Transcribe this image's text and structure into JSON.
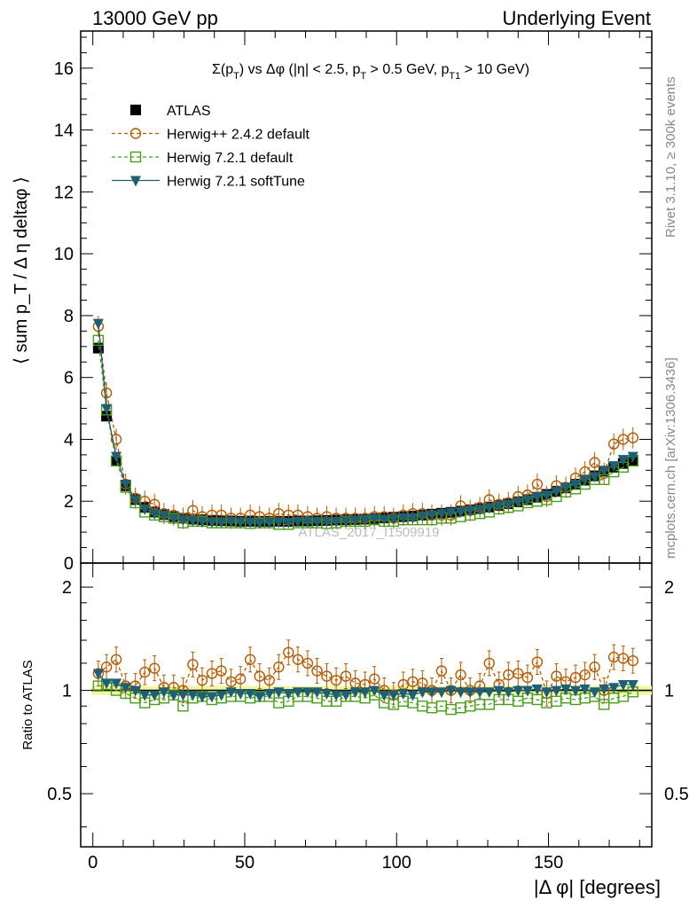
{
  "header": {
    "left": "13000 GeV pp",
    "right": "Underlying Event"
  },
  "side_labels": {
    "rivet": "Rivet 3.1.10, ≥ 300k events",
    "mcplots": "mcplots.cern.ch [arXiv:1306.3436]"
  },
  "watermark": "ATLAS_2017_I1509919",
  "colors": {
    "atlas": "#000000",
    "herwigpp": "#b35a00",
    "herwig721": "#4a9e1a",
    "softtune": "#1f5f73",
    "band": "#f0f7a0"
  },
  "chart_data": [
    {
      "type": "scatter",
      "title": "Σ(p_T) vs Δφ (|η| < 2.5, p_T > 0.5 GeV, p_T1 > 10 GeV)",
      "ylabel": "⟨ sum p_T / Δ η deltaφ ⟩",
      "xlabel": "",
      "xlim": [
        -4,
        184
      ],
      "ylim": [
        0,
        17.2
      ],
      "yticks": [
        0,
        2,
        4,
        6,
        8,
        10,
        12,
        14,
        16
      ],
      "legend_position": "top-left",
      "series": [
        {
          "name": "ATLAS",
          "marker": "square-filled",
          "x": [
            1.8,
            4.5,
            7.7,
            10.8,
            14.0,
            17.1,
            20.3,
            23.4,
            26.6,
            29.7,
            32.9,
            36.0,
            39.2,
            42.3,
            45.5,
            48.6,
            51.8,
            54.9,
            58.1,
            61.2,
            64.4,
            67.5,
            70.7,
            73.8,
            77.0,
            80.1,
            83.3,
            86.4,
            89.6,
            92.7,
            95.9,
            99.0,
            102.2,
            105.3,
            108.5,
            111.6,
            114.8,
            117.9,
            121.1,
            124.2,
            127.4,
            130.5,
            133.7,
            136.8,
            140.0,
            143.1,
            146.3,
            149.4,
            152.6,
            155.7,
            158.9,
            162.0,
            165.2,
            168.3,
            171.5,
            174.6,
            177.8
          ],
          "y": [
            6.95,
            4.75,
            3.3,
            2.5,
            2.05,
            1.8,
            1.65,
            1.57,
            1.5,
            1.45,
            1.42,
            1.4,
            1.38,
            1.37,
            1.36,
            1.35,
            1.35,
            1.35,
            1.35,
            1.35,
            1.35,
            1.36,
            1.36,
            1.37,
            1.38,
            1.39,
            1.4,
            1.41,
            1.42,
            1.44,
            1.46,
            1.48,
            1.5,
            1.52,
            1.55,
            1.58,
            1.61,
            1.64,
            1.68,
            1.72,
            1.76,
            1.81,
            1.86,
            1.92,
            1.98,
            2.05,
            2.13,
            2.22,
            2.32,
            2.43,
            2.55,
            2.68,
            2.82,
            2.97,
            3.1,
            3.22,
            3.32
          ]
        },
        {
          "name": "Herwig++ 2.4.2 default",
          "marker": "circle-open",
          "line": "dashed",
          "x": [
            1.8,
            4.5,
            7.7,
            10.8,
            14.0,
            17.1,
            20.3,
            23.4,
            26.6,
            29.7,
            32.9,
            36.0,
            39.2,
            42.3,
            45.5,
            48.6,
            51.8,
            54.9,
            58.1,
            61.2,
            64.4,
            67.5,
            70.7,
            73.8,
            77.0,
            80.1,
            83.3,
            86.4,
            89.6,
            92.7,
            95.9,
            99.0,
            102.2,
            105.3,
            108.5,
            111.6,
            114.8,
            117.9,
            121.1,
            124.2,
            127.4,
            130.5,
            133.7,
            136.8,
            140.0,
            143.1,
            146.3,
            149.4,
            152.6,
            155.7,
            158.9,
            162.0,
            165.2,
            168.3,
            171.5,
            174.6,
            177.8
          ],
          "y": [
            7.65,
            5.5,
            4.0,
            2.55,
            2.1,
            2.0,
            1.9,
            1.6,
            1.55,
            1.45,
            1.7,
            1.5,
            1.55,
            1.55,
            1.45,
            1.45,
            1.55,
            1.5,
            1.45,
            1.6,
            1.55,
            1.55,
            1.5,
            1.45,
            1.5,
            1.45,
            1.45,
            1.45,
            1.45,
            1.5,
            1.5,
            1.45,
            1.55,
            1.6,
            1.6,
            1.55,
            1.55,
            1.55,
            1.85,
            1.7,
            1.8,
            2.05,
            1.9,
            1.95,
            2.15,
            2.2,
            2.55,
            2.15,
            2.5,
            2.45,
            2.75,
            2.95,
            3.25,
            2.9,
            3.85,
            4.0,
            4.05
          ]
        },
        {
          "name": "Herwig 7.2.1 default",
          "marker": "square-open",
          "line": "dashed",
          "x": [
            1.8,
            4.5,
            7.7,
            10.8,
            14.0,
            17.1,
            20.3,
            23.4,
            26.6,
            29.7,
            32.9,
            36.0,
            39.2,
            42.3,
            45.5,
            48.6,
            51.8,
            54.9,
            58.1,
            61.2,
            64.4,
            67.5,
            70.7,
            73.8,
            77.0,
            80.1,
            83.3,
            86.4,
            89.6,
            92.7,
            95.9,
            99.0,
            102.2,
            105.3,
            108.5,
            111.6,
            114.8,
            117.9,
            121.1,
            124.2,
            127.4,
            130.5,
            133.7,
            136.8,
            140.0,
            143.1,
            146.3,
            149.4,
            152.6,
            155.7,
            158.9,
            162.0,
            165.2,
            168.3,
            171.5,
            174.6,
            177.8
          ],
          "y": [
            7.2,
            4.95,
            3.3,
            2.45,
            1.95,
            1.65,
            1.55,
            1.5,
            1.45,
            1.3,
            1.35,
            1.35,
            1.3,
            1.3,
            1.3,
            1.3,
            1.28,
            1.3,
            1.3,
            1.25,
            1.25,
            1.3,
            1.3,
            1.3,
            1.28,
            1.3,
            1.35,
            1.35,
            1.35,
            1.4,
            1.35,
            1.35,
            1.4,
            1.4,
            1.4,
            1.4,
            1.45,
            1.45,
            1.5,
            1.55,
            1.6,
            1.65,
            1.75,
            1.8,
            1.85,
            1.95,
            2.0,
            2.05,
            2.15,
            2.3,
            2.4,
            2.55,
            2.7,
            2.7,
            2.95,
            3.1,
            3.3
          ]
        },
        {
          "name": "Herwig 7.2.1 softTune",
          "marker": "triangle-down-filled",
          "line": "solid",
          "x": [
            1.8,
            4.5,
            7.7,
            10.8,
            14.0,
            17.1,
            20.3,
            23.4,
            26.6,
            29.7,
            32.9,
            36.0,
            39.2,
            42.3,
            45.5,
            48.6,
            51.8,
            54.9,
            58.1,
            61.2,
            64.4,
            67.5,
            70.7,
            73.8,
            77.0,
            80.1,
            83.3,
            86.4,
            89.6,
            92.7,
            95.9,
            99.0,
            102.2,
            105.3,
            108.5,
            111.6,
            114.8,
            117.9,
            121.1,
            124.2,
            127.4,
            130.5,
            133.7,
            136.8,
            140.0,
            143.1,
            146.3,
            149.4,
            152.6,
            155.7,
            158.9,
            162.0,
            165.2,
            168.3,
            171.5,
            174.6,
            177.8
          ],
          "y": [
            7.75,
            5.0,
            3.45,
            2.55,
            2.05,
            1.75,
            1.6,
            1.55,
            1.45,
            1.4,
            1.38,
            1.35,
            1.33,
            1.33,
            1.35,
            1.33,
            1.33,
            1.3,
            1.32,
            1.33,
            1.32,
            1.35,
            1.35,
            1.35,
            1.35,
            1.35,
            1.36,
            1.39,
            1.41,
            1.44,
            1.42,
            1.44,
            1.47,
            1.47,
            1.53,
            1.56,
            1.6,
            1.64,
            1.66,
            1.7,
            1.74,
            1.79,
            1.86,
            1.9,
            1.98,
            2.05,
            2.15,
            2.2,
            2.32,
            2.45,
            2.55,
            2.7,
            2.8,
            3.0,
            3.15,
            3.35,
            3.45
          ]
        }
      ]
    },
    {
      "type": "scatter",
      "title": "",
      "ylabel": "Ratio to ATLAS",
      "xlabel": "|Δ φ| [degrees]",
      "xlim": [
        -4,
        184
      ],
      "ylim": [
        0.35,
        2.35
      ],
      "yscale": "log",
      "yticks": [
        0.5,
        1,
        2
      ],
      "ytick_labels": [
        "0.5",
        "1",
        "2"
      ],
      "xticks": [
        0,
        50,
        100,
        150
      ],
      "xtick_labels": [
        "0",
        "50",
        "100",
        "150"
      ],
      "reference_band": [
        0.97,
        1.03
      ],
      "series": [
        {
          "name": "Herwig++ 2.4.2 default",
          "y": [
            1.12,
            1.17,
            1.23,
            1.03,
            1.03,
            1.13,
            1.16,
            1.02,
            1.02,
            1.0,
            1.19,
            1.07,
            1.12,
            1.14,
            1.06,
            1.08,
            1.23,
            1.1,
            1.07,
            1.17,
            1.29,
            1.23,
            1.2,
            1.14,
            1.1,
            1.07,
            1.1,
            1.05,
            1.04,
            1.08,
            1.0,
            0.97,
            1.04,
            1.06,
            1.05,
            1.0,
            1.14,
            1.0,
            1.11,
            1.0,
            1.03,
            1.2,
            1.04,
            1.11,
            1.12,
            1.09,
            1.21,
            0.98,
            1.1,
            1.06,
            1.09,
            1.11,
            1.17,
            1.0,
            1.25,
            1.24,
            1.22
          ]
        },
        {
          "name": "Herwig 7.2.1 default",
          "y": [
            1.03,
            1.04,
            1.0,
            0.98,
            0.95,
            0.92,
            0.94,
            0.95,
            0.97,
            0.9,
            0.95,
            0.96,
            0.94,
            0.95,
            0.96,
            0.96,
            0.95,
            0.96,
            0.96,
            0.92,
            0.93,
            0.96,
            0.96,
            0.95,
            0.93,
            0.93,
            0.96,
            0.96,
            0.95,
            0.97,
            0.92,
            0.91,
            0.93,
            0.92,
            0.9,
            0.89,
            0.9,
            0.88,
            0.89,
            0.9,
            0.91,
            0.91,
            0.94,
            0.94,
            0.93,
            0.95,
            0.94,
            0.92,
            0.93,
            0.95,
            0.94,
            0.95,
            0.96,
            0.91,
            0.95,
            0.96,
            0.99
          ]
        },
        {
          "name": "Herwig 7.2.1 softTune",
          "y": [
            1.12,
            1.05,
            1.05,
            1.02,
            1.0,
            0.97,
            0.97,
            0.99,
            0.97,
            0.97,
            0.97,
            0.96,
            0.96,
            0.97,
            0.99,
            0.98,
            0.98,
            0.96,
            0.98,
            0.99,
            0.98,
            0.99,
            0.99,
            0.99,
            0.98,
            0.97,
            0.97,
            0.99,
            0.99,
            1.0,
            0.97,
            0.97,
            0.98,
            0.97,
            0.99,
            0.99,
            0.99,
            1.0,
            0.99,
            0.99,
            0.99,
            0.99,
            1.0,
            0.99,
            1.0,
            1.0,
            1.01,
            0.99,
            1.0,
            1.01,
            1.0,
            1.01,
            0.99,
            1.01,
            1.02,
            1.04,
            1.04
          ]
        }
      ]
    }
  ]
}
